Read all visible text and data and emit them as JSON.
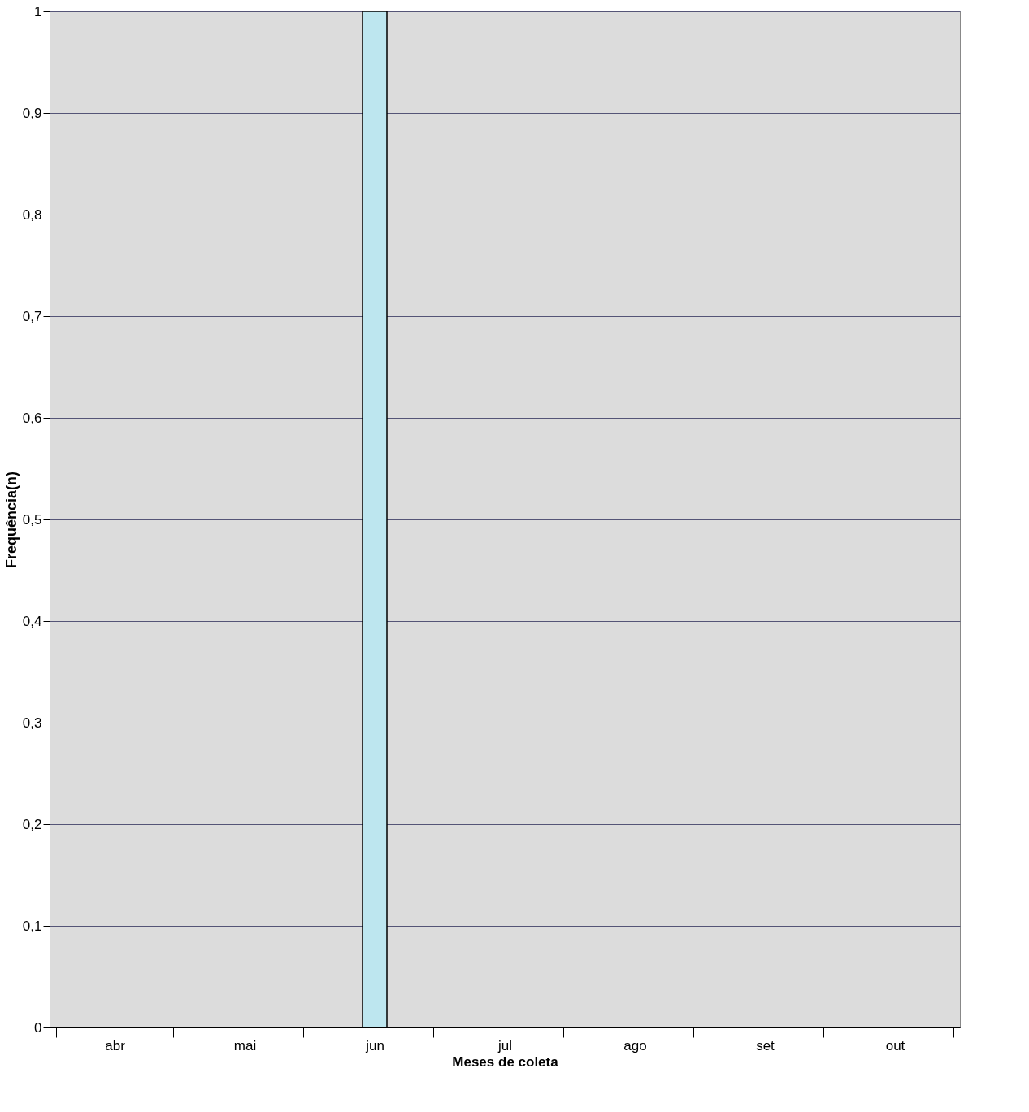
{
  "chart_data": {
    "type": "bar",
    "xlabel": "Meses de coleta",
    "ylabel": "Frequência(n)",
    "categories": [
      "abr",
      "mai",
      "jun",
      "jul",
      "ago",
      "set",
      "out"
    ],
    "values": [
      0,
      0,
      1,
      0,
      0,
      0,
      0
    ],
    "color": "#bde6ef",
    "ylim": [
      0,
      1
    ],
    "yticks": [
      0,
      {
        "value": 0.1,
        "label": "0,1"
      },
      {
        "value": 0.2,
        "label": "0,2"
      },
      {
        "value": 0.3,
        "label": "0,3"
      },
      {
        "value": 0.4,
        "label": "0,4"
      },
      {
        "value": 0.5,
        "label": "0,5"
      },
      {
        "value": 0.6,
        "label": "0,6"
      },
      {
        "value": 0.7,
        "label": "0,7"
      },
      {
        "value": 0.8,
        "label": "0,8"
      },
      {
        "value": 0.9,
        "label": "0,9"
      },
      1
    ],
    "grid": "y"
  }
}
